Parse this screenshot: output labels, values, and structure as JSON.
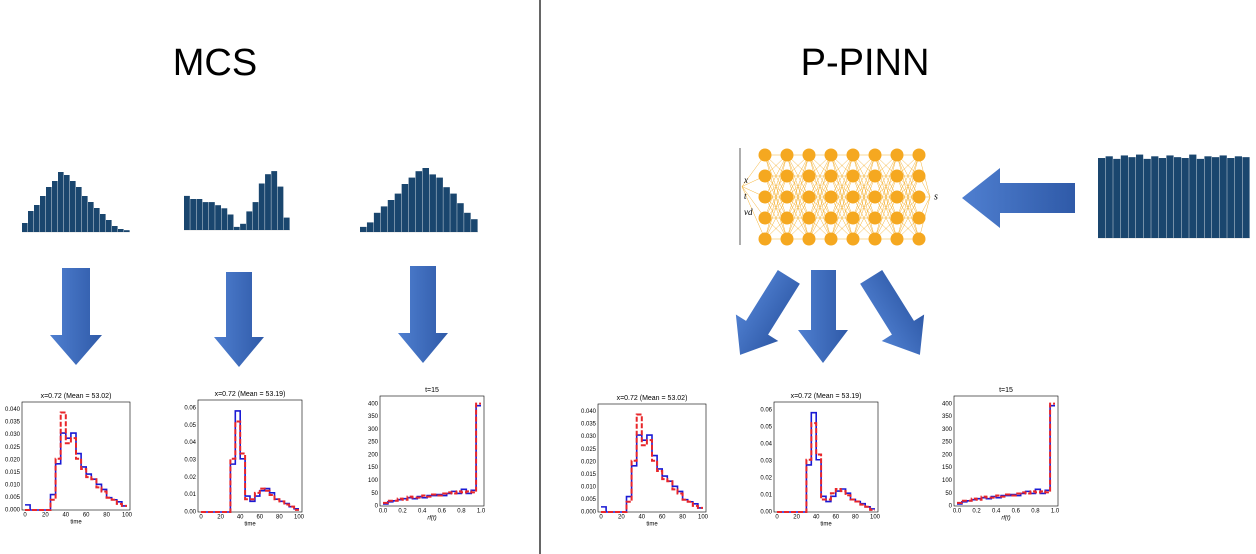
{
  "left": {
    "title": "MCS",
    "plots": [
      {
        "title": "x=0.72 (Mean = 53.02)",
        "xlabel": "time",
        "yticks": [
          "0.000",
          "0.005",
          "0.010",
          "0.015",
          "0.020",
          "0.025",
          "0.030",
          "0.035",
          "0.040"
        ],
        "xticks": [
          "0",
          "20",
          "40",
          "60",
          "80",
          "100"
        ]
      },
      {
        "title": "x=0.72 (Mean = 53.19)",
        "xlabel": "time",
        "yticks": [
          "0.00",
          "0.01",
          "0.02",
          "0.03",
          "0.04",
          "0.05",
          "0.06"
        ],
        "xticks": [
          "0",
          "20",
          "40",
          "60",
          "80",
          "100"
        ]
      },
      {
        "title": "t=15",
        "xlabel": "rf(t)",
        "yticks": [
          "0",
          "50",
          "100",
          "150",
          "200",
          "250",
          "300",
          "350",
          "400"
        ],
        "xticks": [
          "0.0",
          "0.2",
          "0.4",
          "0.6",
          "0.8",
          "1.0"
        ]
      }
    ]
  },
  "right": {
    "title": "P-PINN",
    "network": {
      "inputs": [
        "x",
        "t",
        "vd"
      ],
      "output": "s"
    },
    "plots": [
      {
        "title": "x=0.72 (Mean = 53.02)",
        "xlabel": "time",
        "yticks": [
          "0.000",
          "0.005",
          "0.010",
          "0.015",
          "0.020",
          "0.025",
          "0.030",
          "0.035",
          "0.040"
        ],
        "xticks": [
          "0",
          "20",
          "40",
          "60",
          "80",
          "100"
        ]
      },
      {
        "title": "x=0.72 (Mean = 53.19)",
        "xlabel": "time",
        "yticks": [
          "0.00",
          "0.01",
          "0.02",
          "0.03",
          "0.04",
          "0.05",
          "0.06"
        ],
        "xticks": [
          "0",
          "20",
          "40",
          "60",
          "80",
          "100"
        ]
      },
      {
        "title": "t=15",
        "xlabel": "rf(t)",
        "yticks": [
          "0",
          "50",
          "100",
          "150",
          "200",
          "250",
          "300",
          "350",
          "400"
        ],
        "xticks": [
          "0.0",
          "0.2",
          "0.4",
          "0.6",
          "0.8",
          "1.0"
        ]
      }
    ]
  }
}
